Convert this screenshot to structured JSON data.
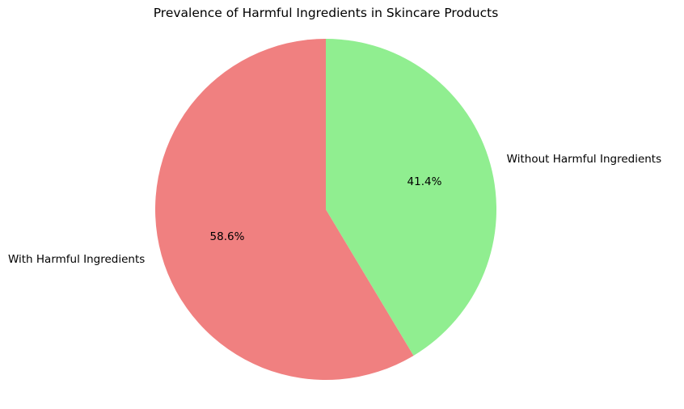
{
  "chart_data": {
    "type": "pie",
    "title": "Prevalence of Harmful Ingredients in Skincare Products",
    "categories": [
      "With Harmful Ingredients",
      "Without Harmful Ingredients"
    ],
    "values": [
      58.6,
      41.4
    ],
    "value_labels": [
      "58.6%",
      "41.4%"
    ],
    "colors": [
      "#f08080",
      "#90ee90"
    ],
    "start_angle_deg": 90,
    "direction": "counterclockwise",
    "legend": "none"
  }
}
